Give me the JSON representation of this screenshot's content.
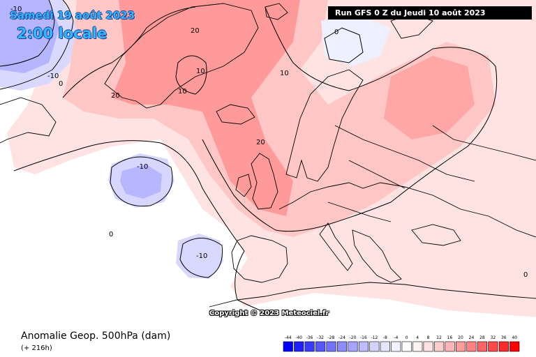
{
  "header": {
    "date": "Samedi 19 août 2023",
    "local_time": "2:00 locale",
    "run": "Run GFS 0 Z du Jeudi 10 août 2023"
  },
  "footer": {
    "title": "Anomalie Geop. 500hPa (dam)",
    "lead": "(+ 216h)",
    "copyright": "Copyright © 2023 Meteociel.fr"
  },
  "contour_labels": [
    "-10",
    "-10",
    "-10",
    "-10",
    "0",
    "0",
    "0",
    "0",
    "10",
    "10",
    "10",
    "20",
    "20",
    "20"
  ],
  "legend": {
    "ticks": [
      "-44",
      "-40",
      "-36",
      "-32",
      "-28",
      "-24",
      "-20",
      "-16",
      "-12",
      "-8",
      "-4",
      "0",
      "4",
      "8",
      "12",
      "16",
      "20",
      "24",
      "28",
      "32",
      "36",
      "40"
    ],
    "colors": [
      "#0000ff",
      "#1f1fff",
      "#3b3bff",
      "#5757ff",
      "#7272ff",
      "#8c8cff",
      "#a5a5ff",
      "#bdbdff",
      "#d3d3ff",
      "#e6e6ff",
      "#f3f3ff",
      "#ffffff",
      "#fff2f2",
      "#ffe1e1",
      "#ffcccc",
      "#ffb5b5",
      "#ff9c9c",
      "#ff8181",
      "#ff6565",
      "#ff4848",
      "#ff2a2a",
      "#ff0000"
    ]
  },
  "colors": {
    "positive_light": "#ffe1e1",
    "positive_mid": "#ffb5b5",
    "positive_strong": "#ff8181",
    "negative_light": "#e3e3ff",
    "negative_mid": "#b9b9ff"
  }
}
